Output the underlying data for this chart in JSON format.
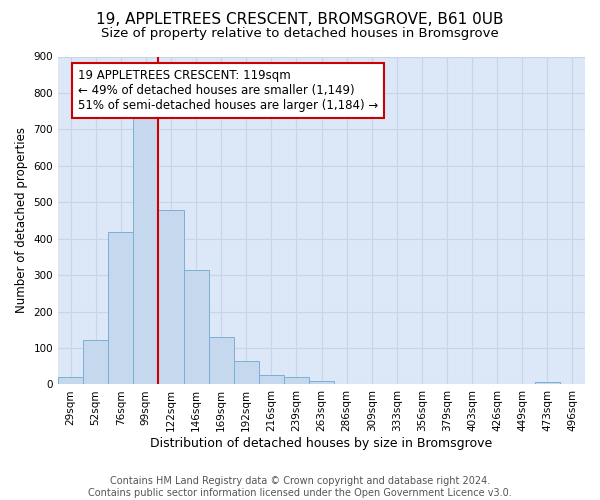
{
  "title1": "19, APPLETREES CRESCENT, BROMSGROVE, B61 0UB",
  "title2": "Size of property relative to detached houses in Bromsgrove",
  "xlabel": "Distribution of detached houses by size in Bromsgrove",
  "ylabel": "Number of detached properties",
  "bar_labels": [
    "29sqm",
    "52sqm",
    "76sqm",
    "99sqm",
    "122sqm",
    "146sqm",
    "169sqm",
    "192sqm",
    "216sqm",
    "239sqm",
    "263sqm",
    "286sqm",
    "309sqm",
    "333sqm",
    "356sqm",
    "379sqm",
    "403sqm",
    "426sqm",
    "449sqm",
    "473sqm",
    "496sqm"
  ],
  "bar_values": [
    20,
    122,
    418,
    730,
    480,
    315,
    130,
    65,
    25,
    20,
    10,
    0,
    0,
    0,
    0,
    0,
    0,
    0,
    0,
    8,
    0
  ],
  "bar_color": "#c5d8ee",
  "bar_edge_color": "#7bafd4",
  "vline_color": "#cc0000",
  "annotation_text": "19 APPLETREES CRESCENT: 119sqm\n← 49% of detached houses are smaller (1,149)\n51% of semi-detached houses are larger (1,184) →",
  "annotation_box_color": "#ffffff",
  "annotation_box_edge": "#cc0000",
  "ylim": [
    0,
    900
  ],
  "yticks": [
    0,
    100,
    200,
    300,
    400,
    500,
    600,
    700,
    800,
    900
  ],
  "grid_color": "#c8d4e8",
  "background_color": "#dce8f8",
  "footer": "Contains HM Land Registry data © Crown copyright and database right 2024.\nContains public sector information licensed under the Open Government Licence v3.0.",
  "title1_fontsize": 11,
  "title2_fontsize": 9.5,
  "xlabel_fontsize": 9,
  "ylabel_fontsize": 8.5,
  "tick_fontsize": 7.5,
  "annotation_fontsize": 8.5,
  "footer_fontsize": 7
}
